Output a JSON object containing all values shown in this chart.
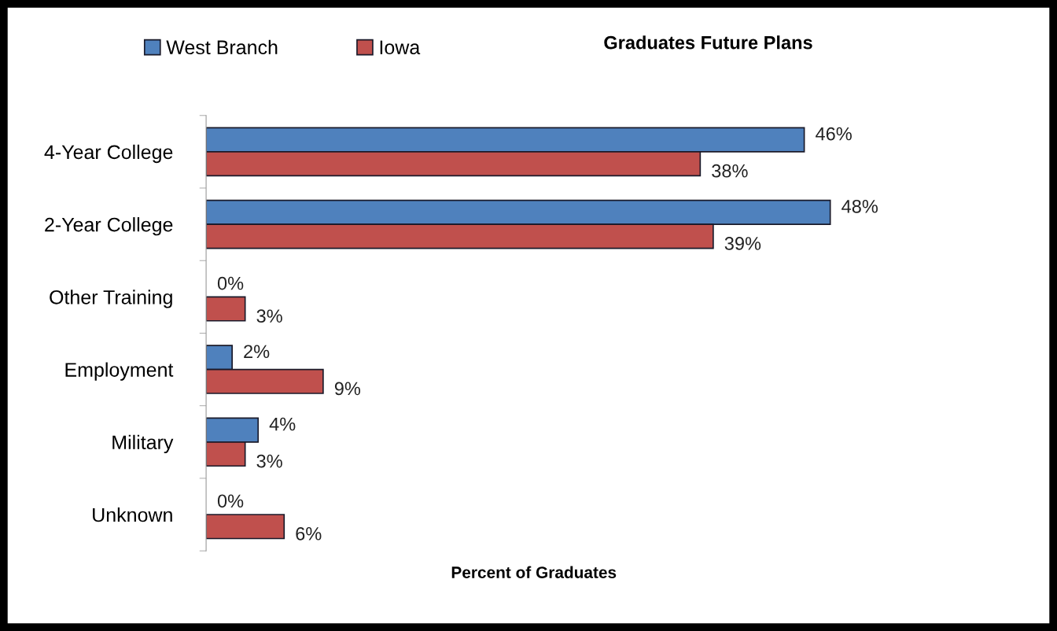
{
  "chart_data": {
    "type": "bar",
    "orientation": "horizontal",
    "title": "Graduates Future Plans",
    "xlabel": "Percent of Graduates",
    "categories": [
      "4-Year College",
      "2-Year College",
      "Other Training",
      "Employment",
      "Military",
      "Unknown"
    ],
    "series": [
      {
        "name": "West Branch",
        "color": "#4f81bd",
        "values": [
          46,
          48,
          0,
          2,
          4,
          0
        ],
        "value_labels": [
          "46%",
          "48%",
          "0%",
          "2%",
          "4%",
          "0%"
        ]
      },
      {
        "name": "Iowa",
        "color": "#c0504d",
        "values": [
          38,
          39,
          3,
          9,
          3,
          6
        ],
        "value_labels": [
          "38%",
          "39%",
          "3%",
          "9%",
          "3%",
          "6%"
        ]
      }
    ],
    "legend": "top left",
    "grid": false
  }
}
